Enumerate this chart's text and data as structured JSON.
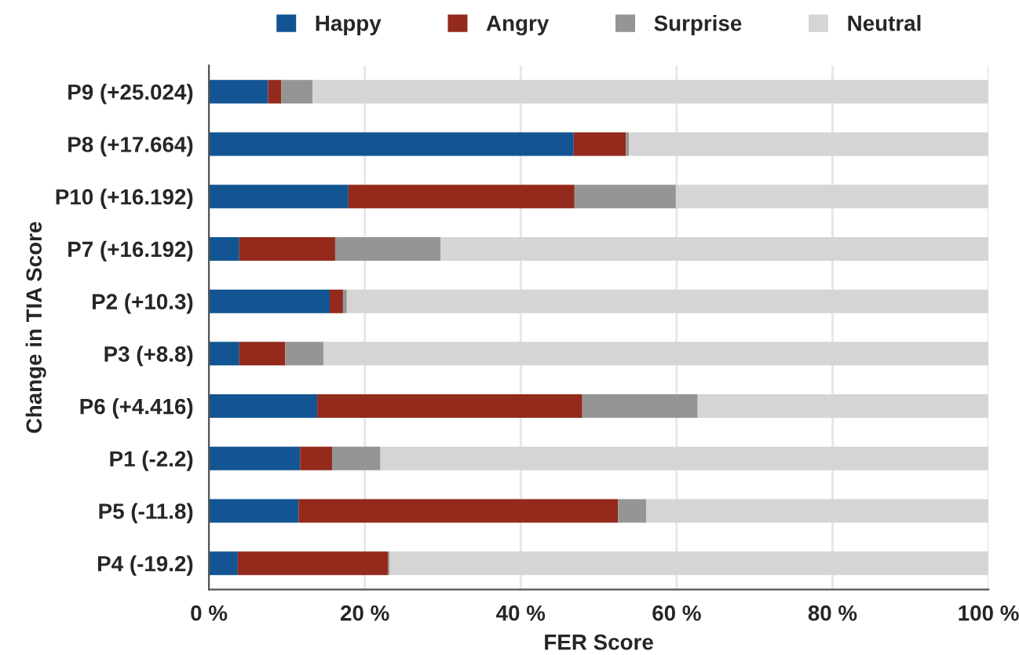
{
  "chart_data": {
    "type": "bar",
    "orientation": "horizontal",
    "stacked": true,
    "categories": [
      "P9 (+25.024)",
      "P8 (+17.664)",
      "P10 (+16.192)",
      "P7 (+16.192)",
      "P2 (+10.3)",
      "P3 (+8.8)",
      "P6 (+4.416)",
      "P1 (-2.2)",
      "P5 (-11.8)",
      "P4 (-19.2)"
    ],
    "series": [
      {
        "name": "Happy",
        "color": "#135592",
        "values": [
          7.6,
          46.8,
          17.9,
          3.9,
          15.5,
          3.9,
          13.9,
          11.7,
          11.5,
          3.7
        ]
      },
      {
        "name": "Angry",
        "color": "#932a1c",
        "values": [
          1.7,
          6.7,
          29.0,
          12.3,
          1.7,
          5.9,
          34.0,
          4.1,
          41.0,
          19.3
        ]
      },
      {
        "name": "Surprise",
        "color": "#959595",
        "values": [
          4.0,
          0.4,
          13.0,
          13.5,
          0.5,
          4.9,
          14.8,
          6.2,
          3.6,
          0.2
        ]
      },
      {
        "name": "Neutral",
        "color": "#d5d5d5",
        "values": [
          86.7,
          46.1,
          40.1,
          70.3,
          82.3,
          85.3,
          37.3,
          78.0,
          43.9,
          76.8
        ]
      }
    ],
    "xlim": [
      0,
      100
    ],
    "xticks": [
      {
        "value": 0,
        "label": "0 %"
      },
      {
        "value": 20,
        "label": "20 %"
      },
      {
        "value": 40,
        "label": "40 %"
      },
      {
        "value": 60,
        "label": "60 %"
      },
      {
        "value": 80,
        "label": "80 %"
      },
      {
        "value": 100,
        "label": "100 %"
      }
    ],
    "xlabel": "FER Score",
    "ylabel": "Change in TIA Score",
    "grid": "x",
    "legend": "top"
  }
}
